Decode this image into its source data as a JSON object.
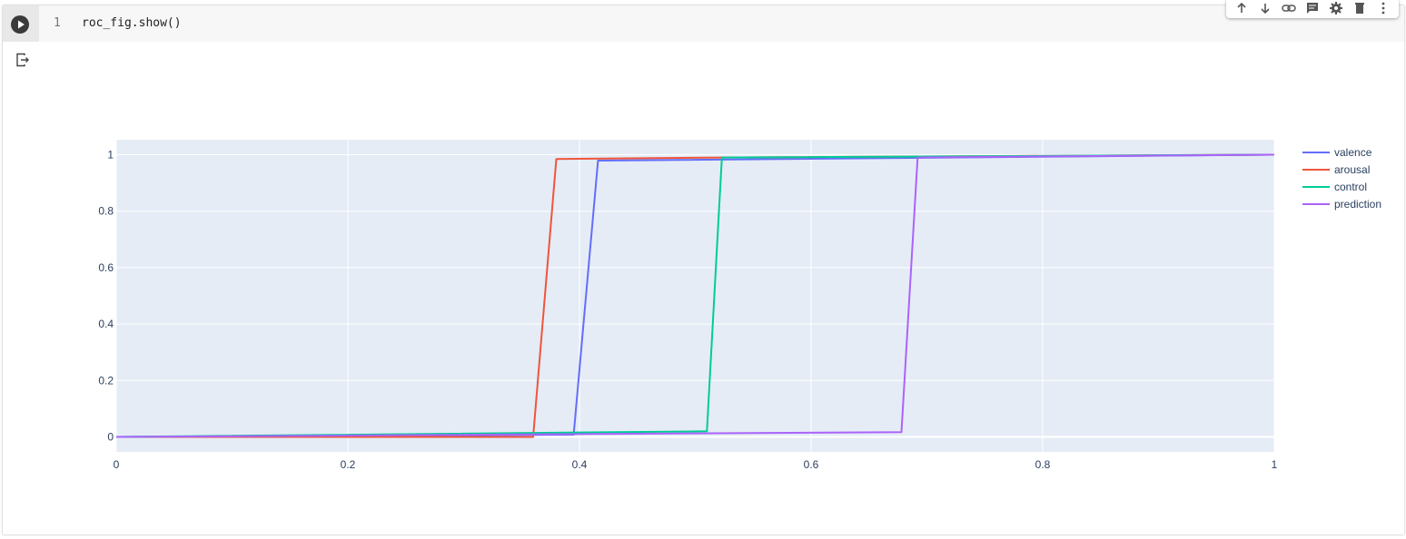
{
  "cell": {
    "line_number": "1",
    "code": "roc_fig.show()"
  },
  "toolbar": {
    "icons": [
      "arrow-up-icon",
      "arrow-down-icon",
      "link-icon",
      "comment-icon",
      "gear-icon",
      "trash-icon",
      "more-vert-icon"
    ]
  },
  "colors": {
    "plot_bg": "#e5ecf6",
    "grid": "#ffffff",
    "text": "#2a3f5f"
  },
  "chart_data": {
    "type": "line",
    "title": "",
    "xlabel": "",
    "ylabel": "",
    "xlim": [
      0,
      1
    ],
    "ylim": [
      -0.053,
      1.053
    ],
    "x_ticks": [
      {
        "value": 0,
        "label": "0"
      },
      {
        "value": 0.2,
        "label": "0.2"
      },
      {
        "value": 0.4,
        "label": "0.4"
      },
      {
        "value": 0.6,
        "label": "0.6"
      },
      {
        "value": 0.8,
        "label": "0.8"
      },
      {
        "value": 1,
        "label": "1"
      }
    ],
    "y_ticks": [
      {
        "value": 0,
        "label": "0"
      },
      {
        "value": 0.2,
        "label": "0.2"
      },
      {
        "value": 0.4,
        "label": "0.4"
      },
      {
        "value": 0.6,
        "label": "0.6"
      },
      {
        "value": 0.8,
        "label": "0.8"
      },
      {
        "value": 1,
        "label": "1"
      }
    ],
    "grid": true,
    "legend_position": "top-right",
    "series": [
      {
        "name": "valence",
        "color": "#636efa",
        "x": [
          0,
          0.395,
          0.416,
          1
        ],
        "y": [
          0,
          0.008,
          0.979,
          1
        ]
      },
      {
        "name": "arousal",
        "color": "#ef553b",
        "x": [
          0,
          0.36,
          0.38,
          0.52,
          1
        ],
        "y": [
          0,
          0,
          0.985,
          0.99,
          1
        ]
      },
      {
        "name": "control",
        "color": "#00cc96",
        "x": [
          0,
          0.51,
          0.523,
          1
        ],
        "y": [
          0,
          0.02,
          0.99,
          1
        ]
      },
      {
        "name": "prediction",
        "color": "#ab63fa",
        "x": [
          0,
          0.678,
          0.692,
          1
        ],
        "y": [
          0,
          0.017,
          0.99,
          1
        ]
      }
    ]
  }
}
